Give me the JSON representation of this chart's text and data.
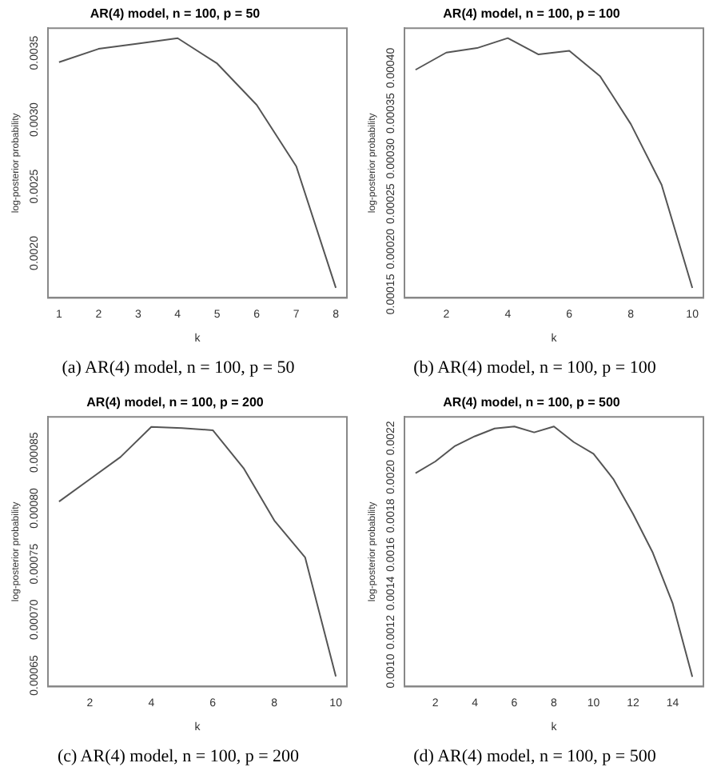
{
  "chart_data": [
    {
      "type": "line",
      "title": "AR(4) model, n = 100, p = 50",
      "xlabel": "k",
      "ylabel": "log-posterior probability",
      "color": "#555555",
      "x": [
        1,
        2,
        3,
        4,
        5,
        6,
        7,
        8
      ],
      "values": [
        0.00343,
        0.00353,
        0.00357,
        0.00361,
        0.00342,
        0.00311,
        0.00265,
        0.00174
      ],
      "xlim": [
        0.72,
        8.28
      ],
      "ylim": [
        0.001665,
        0.003685
      ],
      "xticks": [
        1,
        2,
        3,
        4,
        5,
        6,
        7,
        8
      ],
      "yticks": [
        {
          "value": 0.002,
          "label": "0.0020"
        },
        {
          "value": 0.0025,
          "label": "0.0025"
        },
        {
          "value": 0.003,
          "label": "0.0030"
        },
        {
          "value": 0.0035,
          "label": "0.0035"
        }
      ],
      "annotations": [
        "(a) AR(4) model, n = 100, p = 50"
      ]
    },
    {
      "type": "line",
      "title": "AR(4) model, n = 100, p = 100",
      "xlabel": "k",
      "ylabel": "log-posterior probability",
      "color": "#555555",
      "x": [
        1,
        2,
        3,
        4,
        5,
        6,
        7,
        8,
        9,
        10
      ],
      "values": [
        0.000398,
        0.000417,
        0.000422,
        0.000433,
        0.000415,
        0.000419,
        0.000391,
        0.000338,
        0.000271,
        0.000157
      ],
      "xlim": [
        0.64,
        10.36
      ],
      "ylim": [
        0.000146,
        0.000444
      ],
      "xticks": [
        2,
        4,
        6,
        8,
        10
      ],
      "yticks": [
        {
          "value": 0.00015,
          "label": "0.00015"
        },
        {
          "value": 0.0002,
          "label": "0.00020"
        },
        {
          "value": 0.00025,
          "label": "0.00025"
        },
        {
          "value": 0.0003,
          "label": "0.00030"
        },
        {
          "value": 0.00035,
          "label": "0.00035"
        },
        {
          "value": 0.0004,
          "label": "0.00040"
        }
      ],
      "annotations": [
        "(b) AR(4) model, n = 100, p = 100"
      ]
    },
    {
      "type": "line",
      "title": "AR(4) model, n = 100, p = 200",
      "xlabel": "k",
      "ylabel": "log-posterior probability",
      "color": "#555555",
      "x": [
        1,
        2,
        3,
        4,
        5,
        6,
        7,
        8,
        9,
        10
      ],
      "values": [
        0.000806,
        0.000826,
        0.000846,
        0.000873,
        0.000872,
        0.00087,
        0.000836,
        0.000789,
        0.000756,
        0.000649
      ],
      "xlim": [
        0.64,
        10.36
      ],
      "ylim": [
        0.00064,
        0.000882
      ],
      "xticks": [
        2,
        4,
        6,
        8,
        10
      ],
      "yticks": [
        {
          "value": 0.00065,
          "label": "0.00065"
        },
        {
          "value": 0.0007,
          "label": "0.00070"
        },
        {
          "value": 0.00075,
          "label": "0.00075"
        },
        {
          "value": 0.0008,
          "label": "0.00080"
        },
        {
          "value": 0.00085,
          "label": "0.00085"
        }
      ],
      "annotations": [
        "(c) AR(4) model, n = 100, p = 200"
      ]
    },
    {
      "type": "line",
      "title": "AR(4) model, n = 100, p = 500",
      "xlabel": "k",
      "ylabel": "log-posterior probability",
      "color": "#555555",
      "x": [
        1,
        2,
        3,
        4,
        5,
        6,
        7,
        8,
        9,
        10,
        11,
        12,
        13,
        14,
        15
      ],
      "values": [
        0.00202,
        0.00208,
        0.00216,
        0.00221,
        0.00225,
        0.00226,
        0.00223,
        0.00226,
        0.00218,
        0.00212,
        0.00199,
        0.00181,
        0.00161,
        0.00135,
        0.00097
      ],
      "xlim": [
        0.44,
        15.56
      ],
      "ylim": [
        0.00092,
        0.00231
      ],
      "xticks": [
        2,
        4,
        6,
        8,
        10,
        12,
        14
      ],
      "yticks": [
        {
          "value": 0.001,
          "label": "0.0010"
        },
        {
          "value": 0.0012,
          "label": "0.0012"
        },
        {
          "value": 0.0014,
          "label": "0.0014"
        },
        {
          "value": 0.0016,
          "label": "0.0016"
        },
        {
          "value": 0.0018,
          "label": "0.0018"
        },
        {
          "value": 0.002,
          "label": "0.0020"
        },
        {
          "value": 0.0022,
          "label": "0.0022"
        }
      ],
      "annotations": [
        "(d) AR(4) model, n = 100, p = 500"
      ]
    }
  ]
}
